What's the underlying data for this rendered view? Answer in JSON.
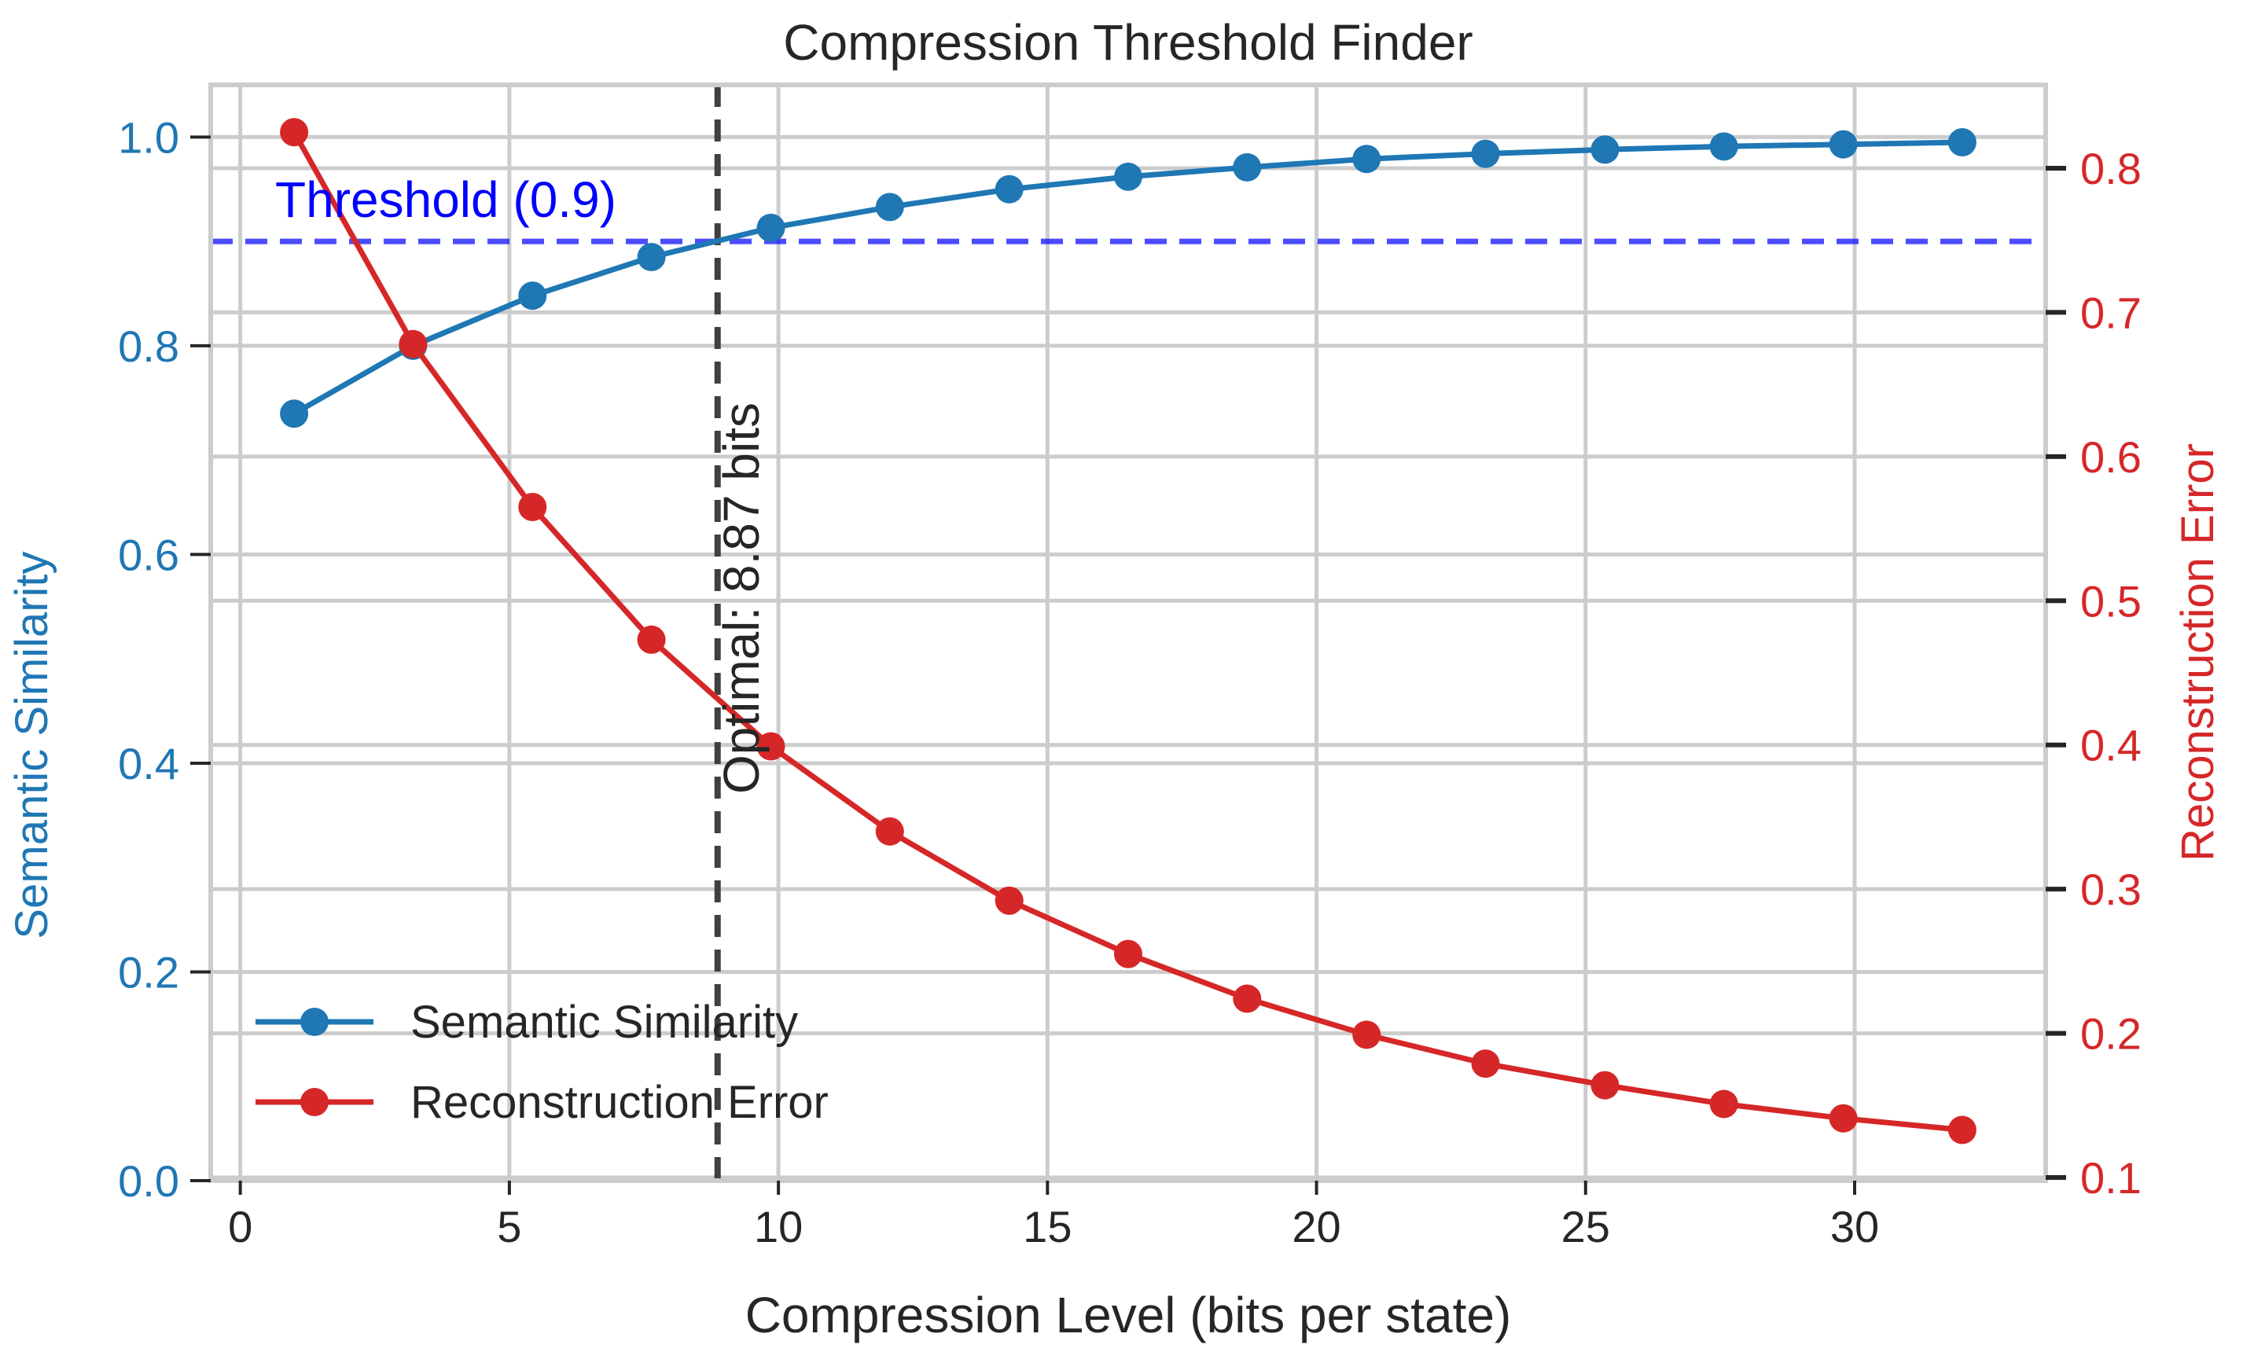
{
  "chart_data": {
    "type": "line",
    "title": "Compression Threshold Finder",
    "xlabel": "Compression Level (bits per state)",
    "ylabel_left": "Semantic Similarity",
    "ylabel_right": "Reconstruction Error",
    "xlim": [
      -0.55,
      33.55
    ],
    "ylim_left": [
      0.0,
      1.05
    ],
    "ylim_right": [
      0.1,
      0.8
    ],
    "x_ticks": [
      0,
      5,
      10,
      15,
      20,
      25,
      30
    ],
    "y_ticks_left": [
      0.0,
      0.2,
      0.4,
      0.6,
      0.8,
      1.0
    ],
    "y_ticks_right": [
      0.1,
      0.2,
      0.3,
      0.4,
      0.5,
      0.6,
      0.7,
      0.8
    ],
    "grid": true,
    "legend_position": "lower-left",
    "x": [
      1.0,
      3.21,
      5.43,
      7.64,
      9.86,
      12.07,
      14.29,
      16.5,
      18.71,
      20.93,
      23.14,
      25.36,
      27.57,
      29.79,
      32.0
    ],
    "series": [
      {
        "name": "Semantic Similarity",
        "axis": "left",
        "color": "#1f77b4",
        "values": [
          0.735,
          0.8,
          0.848,
          0.885,
          0.913,
          0.933,
          0.95,
          0.962,
          0.971,
          0.979,
          0.984,
          0.988,
          0.991,
          0.993,
          0.995
        ]
      },
      {
        "name": "Reconstruction Error",
        "axis": "right",
        "color": "#d62728",
        "values": [
          0.825,
          0.678,
          0.565,
          0.473,
          0.399,
          0.34,
          0.292,
          0.255,
          0.224,
          0.199,
          0.179,
          0.164,
          0.151,
          0.141,
          0.133
        ]
      }
    ],
    "threshold": {
      "value": 0.9,
      "label": "Threshold (0.9)",
      "color": "#0000ff"
    },
    "optimal": {
      "x": 8.87,
      "label": "Optimal: 8.87 bits",
      "color": "#404040"
    }
  }
}
